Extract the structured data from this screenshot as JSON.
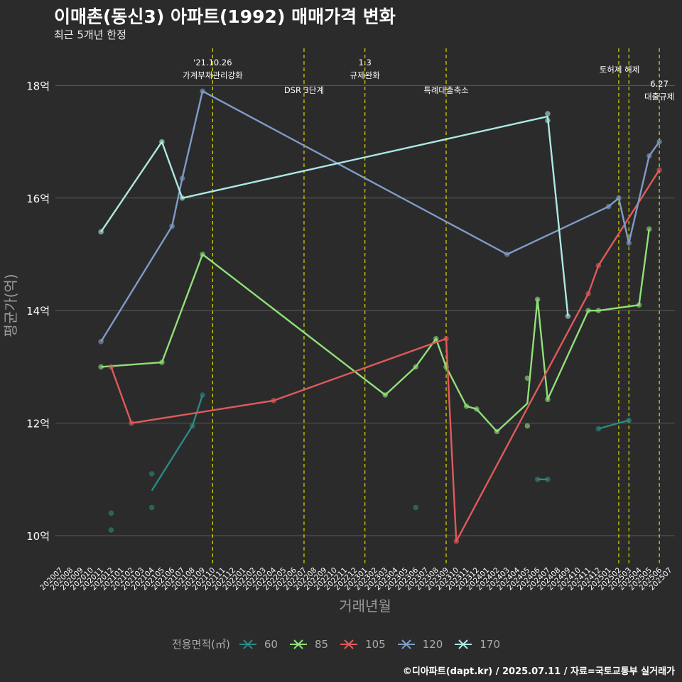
{
  "title": "이매촌(동신3) 아파트(1992) 매매가격 변화",
  "subtitle": "최근 5개년 한정",
  "credit": "©디아파트(dapt.kr) / 2025.07.11 / 자료=국토교통부 실거래가",
  "chart_data": {
    "type": "line",
    "xlabel": "거래년월",
    "ylabel": "평균가(억)",
    "ylim": [
      9.5,
      18.6
    ],
    "y_ticks": [
      10,
      12,
      14,
      16,
      18
    ],
    "y_tick_labels": [
      "10억",
      "12억",
      "14억",
      "16억",
      "18억"
    ],
    "x_categories": [
      "202007",
      "202008",
      "202009",
      "202010",
      "202011",
      "202012",
      "202101",
      "202102",
      "202103",
      "202104",
      "202105",
      "202106",
      "202107",
      "202108",
      "202109",
      "202110",
      "202111",
      "202112",
      "202201",
      "202202",
      "202203",
      "202204",
      "202205",
      "202206",
      "202207",
      "202208",
      "202209",
      "202210",
      "202211",
      "202212",
      "202301",
      "202302",
      "202303",
      "202304",
      "202305",
      "202306",
      "202307",
      "202308",
      "202309",
      "202310",
      "202311",
      "202312",
      "202401",
      "202402",
      "202403",
      "202404",
      "202405",
      "202406",
      "202407",
      "202408",
      "202409",
      "202410",
      "202411",
      "202412",
      "202501",
      "202502",
      "202503",
      "202504",
      "202505",
      "202506",
      "202507"
    ],
    "legend_title": "전용면적(㎡)",
    "legend_position": "bottom",
    "grid": true,
    "events": [
      {
        "month": "202110",
        "label": "'21.10.26\n가계부채관리강화"
      },
      {
        "month": "202207",
        "label": "DSR 3단계"
      },
      {
        "month": "202301",
        "label": "1.3\n규제완화"
      },
      {
        "month": "202309",
        "label": "특례대출축소"
      },
      {
        "month": "202502",
        "label": "토허제 해제"
      },
      {
        "month": "202503",
        "label": ""
      },
      {
        "month": "202506",
        "label": "6.27\n대출규제"
      }
    ],
    "series": [
      {
        "name": "60",
        "color": "#2a8a86",
        "line": [
          [
            "202104",
            10.8
          ],
          [
            "202108",
            11.95
          ],
          [
            "202109",
            12.5
          ],
          null,
          [
            "202406",
            11.0
          ],
          [
            "202407",
            11.0
          ],
          null,
          [
            "202412",
            11.9
          ],
          [
            "202503",
            12.05
          ]
        ],
        "points": [
          [
            "202012",
            10.4
          ],
          [
            "202012",
            10.1
          ],
          [
            "202104",
            11.1
          ],
          [
            "202104",
            10.5
          ],
          [
            "202108",
            11.95
          ],
          [
            "202109",
            12.5
          ],
          [
            "202306",
            10.5
          ],
          [
            "202406",
            11.0
          ],
          [
            "202407",
            11.0
          ],
          [
            "202412",
            11.9
          ],
          [
            "202503",
            12.05
          ]
        ]
      },
      {
        "name": "85",
        "color": "#90e07a",
        "line": [
          [
            "202011",
            13.0
          ],
          [
            "202105",
            13.08
          ],
          [
            "202109",
            15.0
          ],
          [
            "202303",
            12.5
          ],
          [
            "202306",
            13.0
          ],
          [
            "202308",
            13.5
          ],
          [
            "202309",
            13.0
          ],
          [
            "202311",
            12.3
          ],
          [
            "202312",
            12.25
          ],
          [
            "202402",
            11.85
          ],
          [
            "202405",
            12.35
          ],
          [
            "202406",
            14.2
          ],
          [
            "202407",
            12.42
          ],
          [
            "202411",
            14.0
          ],
          [
            "202412",
            14.0
          ],
          [
            "202504",
            14.1
          ],
          [
            "202505",
            15.45
          ]
        ],
        "points": [
          [
            "202011",
            13.0
          ],
          [
            "202105",
            13.08
          ],
          [
            "202109",
            15.0
          ],
          [
            "202303",
            12.5
          ],
          [
            "202306",
            13.0
          ],
          [
            "202308",
            13.5
          ],
          [
            "202309",
            13.0
          ],
          [
            "202311",
            12.3
          ],
          [
            "202312",
            12.25
          ],
          [
            "202402",
            11.85
          ],
          [
            "202405",
            12.8
          ],
          [
            "202405",
            11.95
          ],
          [
            "202406",
            14.2
          ],
          [
            "202407",
            12.42
          ],
          [
            "202411",
            14.0
          ],
          [
            "202412",
            14.0
          ],
          [
            "202504",
            14.1
          ],
          [
            "202505",
            15.45
          ]
        ]
      },
      {
        "name": "105",
        "color": "#e05a5a",
        "line": [
          [
            "202012",
            13.0
          ],
          [
            "202102",
            12.0
          ],
          [
            "202204",
            12.4
          ],
          [
            "202309",
            13.5
          ],
          [
            "202310",
            9.9
          ],
          [
            "202411",
            14.3
          ],
          [
            "202412",
            14.8
          ],
          [
            "202506",
            16.5
          ]
        ],
        "points": [
          [
            "202012",
            13.0
          ],
          [
            "202102",
            12.0
          ],
          [
            "202204",
            12.4
          ],
          [
            "202309",
            13.5
          ],
          [
            "202310",
            9.9
          ],
          [
            "202411",
            14.3
          ],
          [
            "202412",
            14.8
          ],
          [
            "202506",
            16.5
          ]
        ]
      },
      {
        "name": "120",
        "color": "#7f9cc8",
        "line": [
          [
            "202011",
            13.45
          ],
          [
            "202106",
            15.5
          ],
          [
            "202107",
            16.35
          ],
          [
            "202109",
            17.9
          ],
          [
            "202403",
            15.0
          ],
          [
            "202501",
            15.85
          ],
          [
            "202502",
            16.0
          ],
          [
            "202503",
            15.2
          ],
          [
            "202505",
            16.75
          ],
          [
            "202506",
            17.0
          ]
        ],
        "points": [
          [
            "202011",
            13.45
          ],
          [
            "202106",
            15.5
          ],
          [
            "202107",
            16.35
          ],
          [
            "202109",
            17.9
          ],
          [
            "202403",
            15.0
          ],
          [
            "202501",
            15.85
          ],
          [
            "202502",
            16.0
          ],
          [
            "202503",
            15.2
          ],
          [
            "202505",
            16.75
          ],
          [
            "202506",
            17.0
          ]
        ]
      },
      {
        "name": "170",
        "color": "#aee8e2",
        "line": [
          [
            "202011",
            15.4
          ],
          [
            "202105",
            17.0
          ],
          [
            "202107",
            16.0
          ],
          [
            "202407",
            17.45
          ],
          [
            "202409",
            13.9
          ]
        ],
        "points": [
          [
            "202011",
            15.4
          ],
          [
            "202105",
            17.0
          ],
          [
            "202107",
            16.0
          ],
          [
            "202407",
            17.5
          ],
          [
            "202407",
            17.38
          ],
          [
            "202409",
            13.9
          ]
        ]
      }
    ]
  }
}
